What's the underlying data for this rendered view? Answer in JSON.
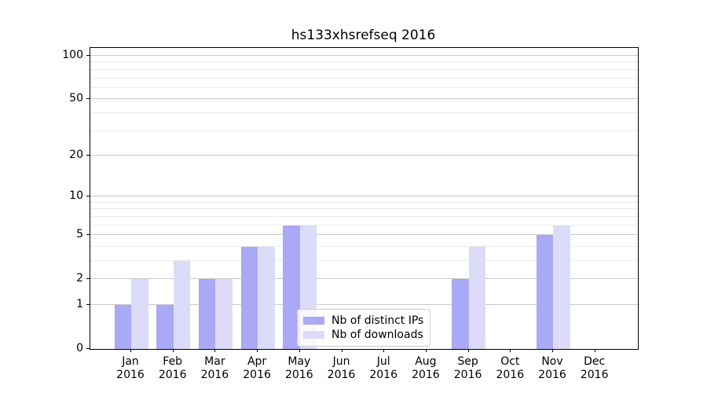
{
  "chart_data": {
    "type": "bar",
    "title": "hs133xhsrefseq 2016",
    "year_label": "2016",
    "months": [
      "Jan",
      "Feb",
      "Mar",
      "Apr",
      "May",
      "Jun",
      "Jul",
      "Aug",
      "Sep",
      "Oct",
      "Nov",
      "Dec"
    ],
    "series": [
      {
        "name": "Nb of distinct IPs",
        "color": "#a9a9f6",
        "values": [
          1,
          1,
          2,
          4,
          6,
          0,
          0,
          0,
          2,
          0,
          5,
          0
        ]
      },
      {
        "name": "Nb of downloads",
        "color": "#dcdcf9",
        "values": [
          2,
          3,
          2,
          4,
          6,
          0,
          0,
          0,
          4,
          0,
          6,
          0
        ]
      }
    ],
    "yscale": "log1p",
    "ylim": [
      0,
      113
    ],
    "yticks": [
      0,
      1,
      2,
      5,
      10,
      20,
      50,
      100
    ],
    "ytick_labels": [
      "0",
      "1",
      "2",
      "5",
      "10",
      "20",
      "50",
      "100"
    ],
    "grid_minor_values": [
      3,
      4,
      6,
      7,
      8,
      9,
      30,
      40,
      60,
      70,
      80,
      90
    ],
    "grid": true,
    "legend_position": "lower center",
    "xlabel": "",
    "ylabel": ""
  }
}
